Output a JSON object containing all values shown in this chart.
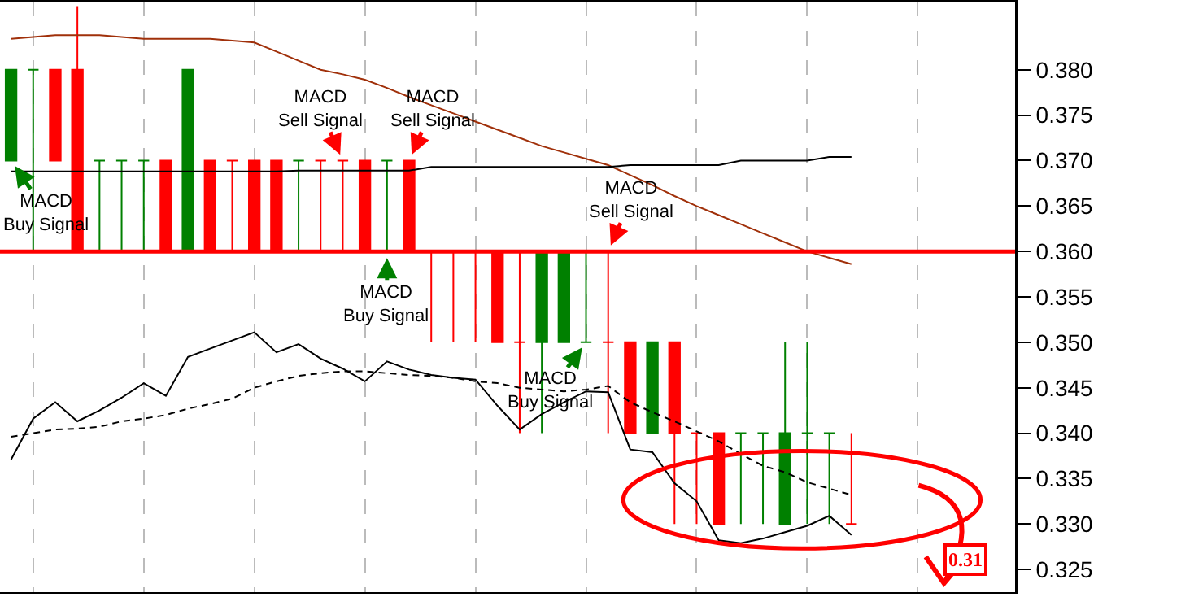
{
  "chart_data": {
    "type": "candlestick",
    "categories": [
      null,
      null,
      null,
      null,
      null,
      null,
      null,
      null,
      null,
      null,
      null,
      null,
      null,
      null,
      null,
      null,
      null,
      null,
      null,
      null,
      null,
      null,
      null,
      null,
      null,
      null,
      null,
      null,
      null,
      null,
      null,
      null,
      null,
      null,
      null,
      null,
      null,
      null,
      null
    ],
    "ohlc": [
      [
        0.37,
        0.38,
        0.37,
        0.38
      ],
      [
        0.38,
        0.38,
        0.36,
        0.38
      ],
      [
        0.38,
        0.38,
        0.37,
        0.37
      ],
      [
        0.38,
        0.387,
        0.36,
        0.36
      ],
      [
        0.37,
        0.37,
        0.36,
        0.37
      ],
      [
        0.37,
        0.37,
        0.36,
        0.37
      ],
      [
        0.37,
        0.37,
        0.36,
        0.37
      ],
      [
        0.37,
        0.37,
        0.36,
        0.36
      ],
      [
        0.36,
        0.38,
        0.36,
        0.38
      ],
      [
        0.37,
        0.37,
        0.36,
        0.36
      ],
      [
        0.37,
        0.37,
        0.36,
        0.37
      ],
      [
        0.37,
        0.37,
        0.36,
        0.36
      ],
      [
        0.37,
        0.37,
        0.36,
        0.36
      ],
      [
        0.37,
        0.37,
        0.36,
        0.37
      ],
      [
        0.37,
        0.37,
        0.36,
        0.37
      ],
      [
        0.37,
        0.37,
        0.36,
        0.37
      ],
      [
        0.37,
        0.37,
        0.36,
        0.36
      ],
      [
        0.37,
        0.37,
        0.36,
        0.37
      ],
      [
        0.37,
        0.37,
        0.36,
        0.36
      ],
      [
        0.36,
        0.36,
        0.35,
        0.36
      ],
      [
        0.36,
        0.36,
        0.35,
        0.36
      ],
      [
        0.36,
        0.36,
        0.35,
        0.36
      ],
      [
        0.36,
        0.36,
        0.35,
        0.35
      ],
      [
        0.35,
        0.36,
        0.34,
        0.35
      ],
      [
        0.35,
        0.36,
        0.34,
        0.36
      ],
      [
        0.35,
        0.36,
        0.35,
        0.36
      ],
      [
        0.35,
        0.36,
        0.35,
        0.35
      ],
      [
        0.35,
        0.36,
        0.34,
        0.35
      ],
      [
        0.35,
        0.35,
        0.34,
        0.34
      ],
      [
        0.34,
        0.35,
        0.34,
        0.35
      ],
      [
        0.35,
        0.35,
        0.33,
        0.34
      ],
      [
        0.34,
        0.34,
        0.33,
        0.34
      ],
      [
        0.34,
        0.34,
        0.33,
        0.33
      ],
      [
        0.34,
        0.34,
        0.33,
        0.34
      ],
      [
        0.34,
        0.34,
        0.33,
        0.34
      ],
      [
        0.33,
        0.35,
        0.33,
        0.34
      ],
      [
        0.34,
        0.35,
        0.33,
        0.34
      ],
      [
        0.34,
        0.34,
        0.33,
        0.34
      ],
      [
        0.33,
        0.34,
        0.33,
        0.33
      ]
    ],
    "colors": [
      "#008000",
      "#008000",
      "#ff0000",
      "#ff0000",
      "#008000",
      "#008000",
      "#008000",
      "#ff0000",
      "#008000",
      "#ff0000",
      "#ff0000",
      "#ff0000",
      "#ff0000",
      "#008000",
      "#ff0000",
      "#ff0000",
      "#ff0000",
      "#008000",
      "#ff0000",
      "#ff0000",
      "#ff0000",
      "#ff0000",
      "#ff0000",
      "#ff0000",
      "#008000",
      "#008000",
      "#008000",
      "#ff0000",
      "#ff0000",
      "#008000",
      "#ff0000",
      "#ff0000",
      "#ff0000",
      "#008000",
      "#008000",
      "#008000",
      "#008000",
      "#008000",
      "#ff0000"
    ],
    "series": [
      {
        "type": "line",
        "color": "#a0300a",
        "line_style": "solid",
        "values": [
          0.3834,
          0.3836,
          0.3838,
          0.3838,
          0.3838,
          0.3836,
          0.3834,
          0.3834,
          0.3834,
          0.3834,
          0.3832,
          0.383,
          0.382,
          0.381,
          0.38,
          0.3795,
          0.3789,
          0.378,
          0.377,
          0.3761,
          0.3752,
          0.3743,
          0.3734,
          0.3725,
          0.3716,
          0.3709,
          0.3702,
          0.3695,
          0.3684,
          0.3673,
          0.3661,
          0.365,
          0.364,
          0.363,
          0.362,
          0.361,
          0.36,
          0.3593,
          0.3586
        ]
      },
      {
        "type": "line",
        "color": "#000000",
        "line_style": "solid",
        "values": [
          0.3688,
          0.3688,
          0.3688,
          0.3688,
          0.3688,
          0.3688,
          0.3688,
          0.3688,
          0.3688,
          0.3688,
          0.3688,
          0.3688,
          0.3688,
          0.3689,
          0.3689,
          0.3689,
          0.3689,
          0.3689,
          0.3689,
          0.3693,
          0.3693,
          0.3693,
          0.3693,
          0.3693,
          0.3693,
          0.3693,
          0.3693,
          0.3693,
          0.3695,
          0.3695,
          0.3695,
          0.3695,
          0.3695,
          0.37,
          0.37,
          0.37,
          0.37,
          0.3704,
          0.3704
        ]
      },
      {
        "type": "line",
        "color": "#000000",
        "line_style": "solid",
        "values": [
          0.3371,
          0.3416,
          0.3434,
          0.3413,
          0.3425,
          0.3439,
          0.3455,
          0.3441,
          0.3484,
          0.3493,
          0.3502,
          0.3511,
          0.3489,
          0.3498,
          0.3482,
          0.3471,
          0.3457,
          0.3479,
          0.347,
          0.3464,
          0.3461,
          0.3459,
          0.343,
          0.3404,
          0.3421,
          0.3434,
          0.3446,
          0.3445,
          0.3382,
          0.3379,
          0.3345,
          0.3325,
          0.3282,
          0.3279,
          0.3284,
          0.3291,
          0.3298,
          0.3309,
          0.3288
        ]
      },
      {
        "type": "line",
        "color": "#000000",
        "line_style": "dashed",
        "values": [
          0.3396,
          0.34,
          0.3404,
          0.3405,
          0.3407,
          0.3413,
          0.3416,
          0.342,
          0.3427,
          0.3432,
          0.3438,
          0.345,
          0.3457,
          0.3463,
          0.3466,
          0.3468,
          0.3468,
          0.3466,
          0.3464,
          0.3463,
          0.3461,
          0.3457,
          0.3455,
          0.345,
          0.3448,
          0.3446,
          0.3448,
          0.3452,
          0.3434,
          0.3423,
          0.3413,
          0.3402,
          0.3391,
          0.3377,
          0.3364,
          0.3357,
          0.3346,
          0.3339,
          0.3332
        ]
      }
    ],
    "ylim": [
      0.3225,
      0.3875
    ],
    "yticks": [
      {
        "value": 0.325,
        "label": "0.325"
      },
      {
        "value": 0.33,
        "label": "0.330"
      },
      {
        "value": 0.335,
        "label": "0.335"
      },
      {
        "value": 0.34,
        "label": "0.340"
      },
      {
        "value": 0.345,
        "label": "0.345"
      },
      {
        "value": 0.35,
        "label": "0.350"
      },
      {
        "value": 0.355,
        "label": "0.355"
      },
      {
        "value": 0.36,
        "label": "0.360"
      },
      {
        "value": 0.365,
        "label": "0.365"
      },
      {
        "value": 0.37,
        "label": "0.370"
      },
      {
        "value": 0.375,
        "label": "0.375"
      },
      {
        "value": 0.38,
        "label": "0.380"
      }
    ],
    "tick_labels": "y",
    "grid": "x",
    "ref_lines": [
      {
        "axis": "y",
        "value": 0.36,
        "color": "#ff0000"
      }
    ],
    "annotations": [
      {
        "text": "MACD\nBuy Signal",
        "y": 0.37
      },
      {
        "text": "MACD\nSell Signal",
        "y": 0.37
      },
      {
        "text": "MACD\nSell Signal",
        "y": 0.37
      },
      {
        "text": "MACD\nBuy Signal",
        "y": 0.36
      },
      {
        "text": "MACD\nSell Signal",
        "y": 0.36
      },
      {
        "text": "MACD\nBuy Signal",
        "y": 0.35
      },
      "0.31"
    ]
  }
}
